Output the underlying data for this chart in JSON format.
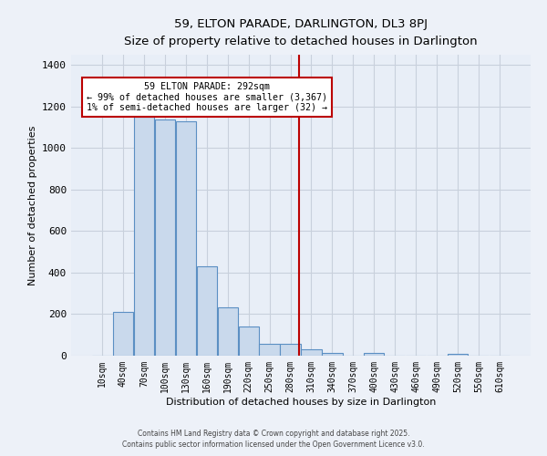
{
  "title": "59, ELTON PARADE, DARLINGTON, DL3 8PJ",
  "subtitle": "Size of property relative to detached houses in Darlington",
  "xlabel": "Distribution of detached houses by size in Darlington",
  "ylabel": "Number of detached properties",
  "bar_color": "#c9d9ec",
  "bar_edgecolor": "#5b8fc3",
  "background_color": "#e8eef7",
  "fig_background_color": "#edf1f8",
  "grid_color": "#c8d0dc",
  "categories": [
    "10sqm",
    "40sqm",
    "70sqm",
    "100sqm",
    "130sqm",
    "160sqm",
    "190sqm",
    "220sqm",
    "250sqm",
    "280sqm",
    "310sqm",
    "340sqm",
    "370sqm",
    "400sqm",
    "430sqm",
    "460sqm",
    "490sqm",
    "520sqm",
    "550sqm",
    "610sqm"
  ],
  "values": [
    0,
    210,
    1150,
    1140,
    1130,
    430,
    235,
    140,
    55,
    55,
    30,
    12,
    0,
    13,
    0,
    0,
    0,
    10,
    0,
    0
  ],
  "vline_color": "#bb0000",
  "annotation_text": "59 ELTON PARADE: 292sqm\n← 99% of detached houses are smaller (3,367)\n1% of semi-detached houses are larger (32) →",
  "annotation_box_edgecolor": "#bb0000",
  "annotation_box_facecolor": "#ffffff",
  "ylim": [
    0,
    1450
  ],
  "footer1": "Contains HM Land Registry data © Crown copyright and database right 2025.",
  "footer2": "Contains public sector information licensed under the Open Government Licence v3.0."
}
